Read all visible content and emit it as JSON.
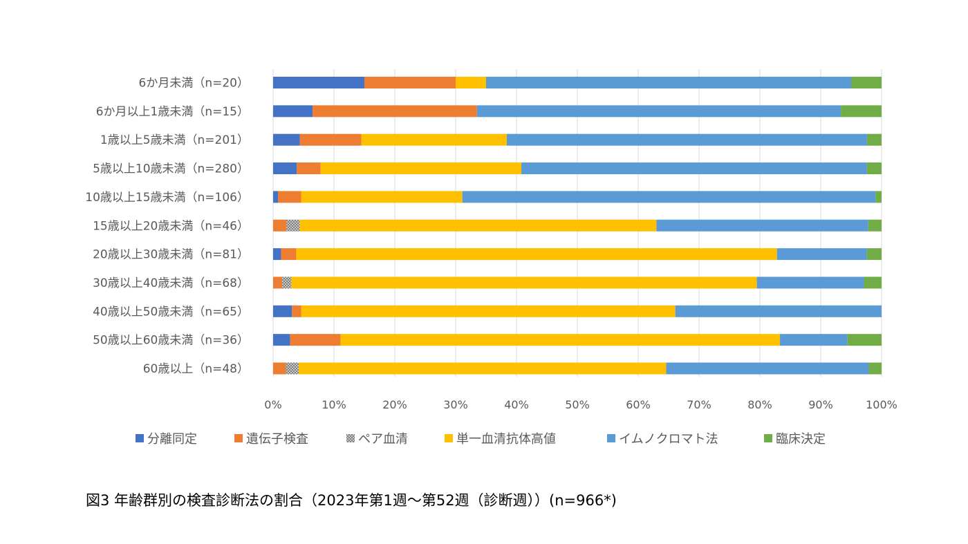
{
  "caption": "図3  年齢群別の検査診断法の割合（2023年第1週～第52週（診断週））(n=966*)",
  "chart_data": {
    "type": "bar",
    "orientation": "horizontal",
    "stacked": "percent",
    "categories": [
      "6か月未満（n=20）",
      "6か月以上1歳未満（n=15）",
      "1歳以上5歳未満（n=201）",
      "5歳以上10歳未満（n=280）",
      "10歳以上15歳未満（n=106）",
      "15歳以上20歳未満（n=46）",
      "20歳以上30歳未満（n=81）",
      "30歳以上40歳未満（n=68）",
      "40歳以上50歳未満（n=65）",
      "50歳以上60歳未満（n=36）",
      "60歳以上（n=48）"
    ],
    "series": [
      {
        "name": "分離同定",
        "color": "#4472C4",
        "pattern": "solid",
        "values": [
          15.0,
          6.5,
          4.4,
          3.9,
          0.8,
          0,
          1.3,
          0,
          3.1,
          2.8,
          0
        ]
      },
      {
        "name": "遺伝子検査",
        "color": "#ED7D31",
        "pattern": "solid",
        "values": [
          15.0,
          27.0,
          10.1,
          3.9,
          3.8,
          2.2,
          2.5,
          1.5,
          1.5,
          8.3,
          2.1
        ]
      },
      {
        "name": "ペア血清",
        "color": "#A5A5A5",
        "pattern": "dotted",
        "values": [
          0,
          0,
          0,
          0,
          0,
          2.2,
          0,
          1.5,
          0,
          0,
          2.1
        ]
      },
      {
        "name": "単一血清抗体高値",
        "color": "#FFC000",
        "pattern": "solid",
        "values": [
          5.0,
          0,
          23.9,
          33.0,
          26.5,
          58.6,
          79.0,
          76.5,
          61.5,
          72.2,
          60.4
        ]
      },
      {
        "name": "イムノクロマト法",
        "color": "#5B9BD5",
        "pattern": "solid",
        "values": [
          60.0,
          59.8,
          59.2,
          56.8,
          67.9,
          34.8,
          14.8,
          17.6,
          33.9,
          11.1,
          33.3
        ]
      },
      {
        "name": "臨床決定",
        "color": "#70AD47",
        "pattern": "solid",
        "values": [
          5.0,
          6.7,
          2.4,
          2.4,
          1.0,
          2.2,
          2.4,
          2.9,
          0,
          5.6,
          2.1
        ]
      }
    ],
    "x_ticks": [
      "0%",
      "10%",
      "20%",
      "30%",
      "40%",
      "50%",
      "60%",
      "70%",
      "80%",
      "90%",
      "100%"
    ],
    "xlim": [
      0,
      100
    ],
    "grid": "vertical",
    "legend_position": "bottom"
  }
}
